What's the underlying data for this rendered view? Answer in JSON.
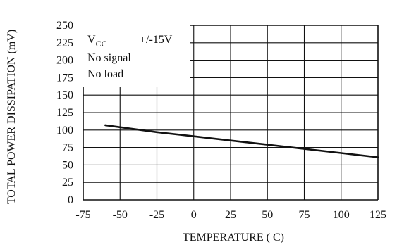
{
  "chart_data": {
    "type": "line",
    "title": "",
    "xlabel": "TEMPERATURE ( C)",
    "ylabel": "TOTAL POWER DISSIPATION (mV)",
    "xlim": [
      -75,
      125
    ],
    "ylim": [
      0,
      250
    ],
    "xticks": [
      -75,
      -50,
      -25,
      0,
      25,
      50,
      75,
      100,
      125
    ],
    "yticks": [
      0,
      25,
      50,
      75,
      100,
      125,
      150,
      175,
      200,
      225,
      250
    ],
    "grid": true,
    "series": [
      {
        "x": [
          -60,
          -25,
          0,
          25,
          50,
          75,
          100,
          125
        ],
        "y": [
          107,
          97,
          91,
          85,
          79,
          73,
          67,
          61
        ]
      }
    ],
    "annotation": {
      "vcc_main": "V",
      "vcc_sub": "CC",
      "vcc_value": "+/-15V",
      "line2": "No signal",
      "line3": "No load"
    },
    "line_color": "#111111",
    "grid_color": "#111111"
  }
}
